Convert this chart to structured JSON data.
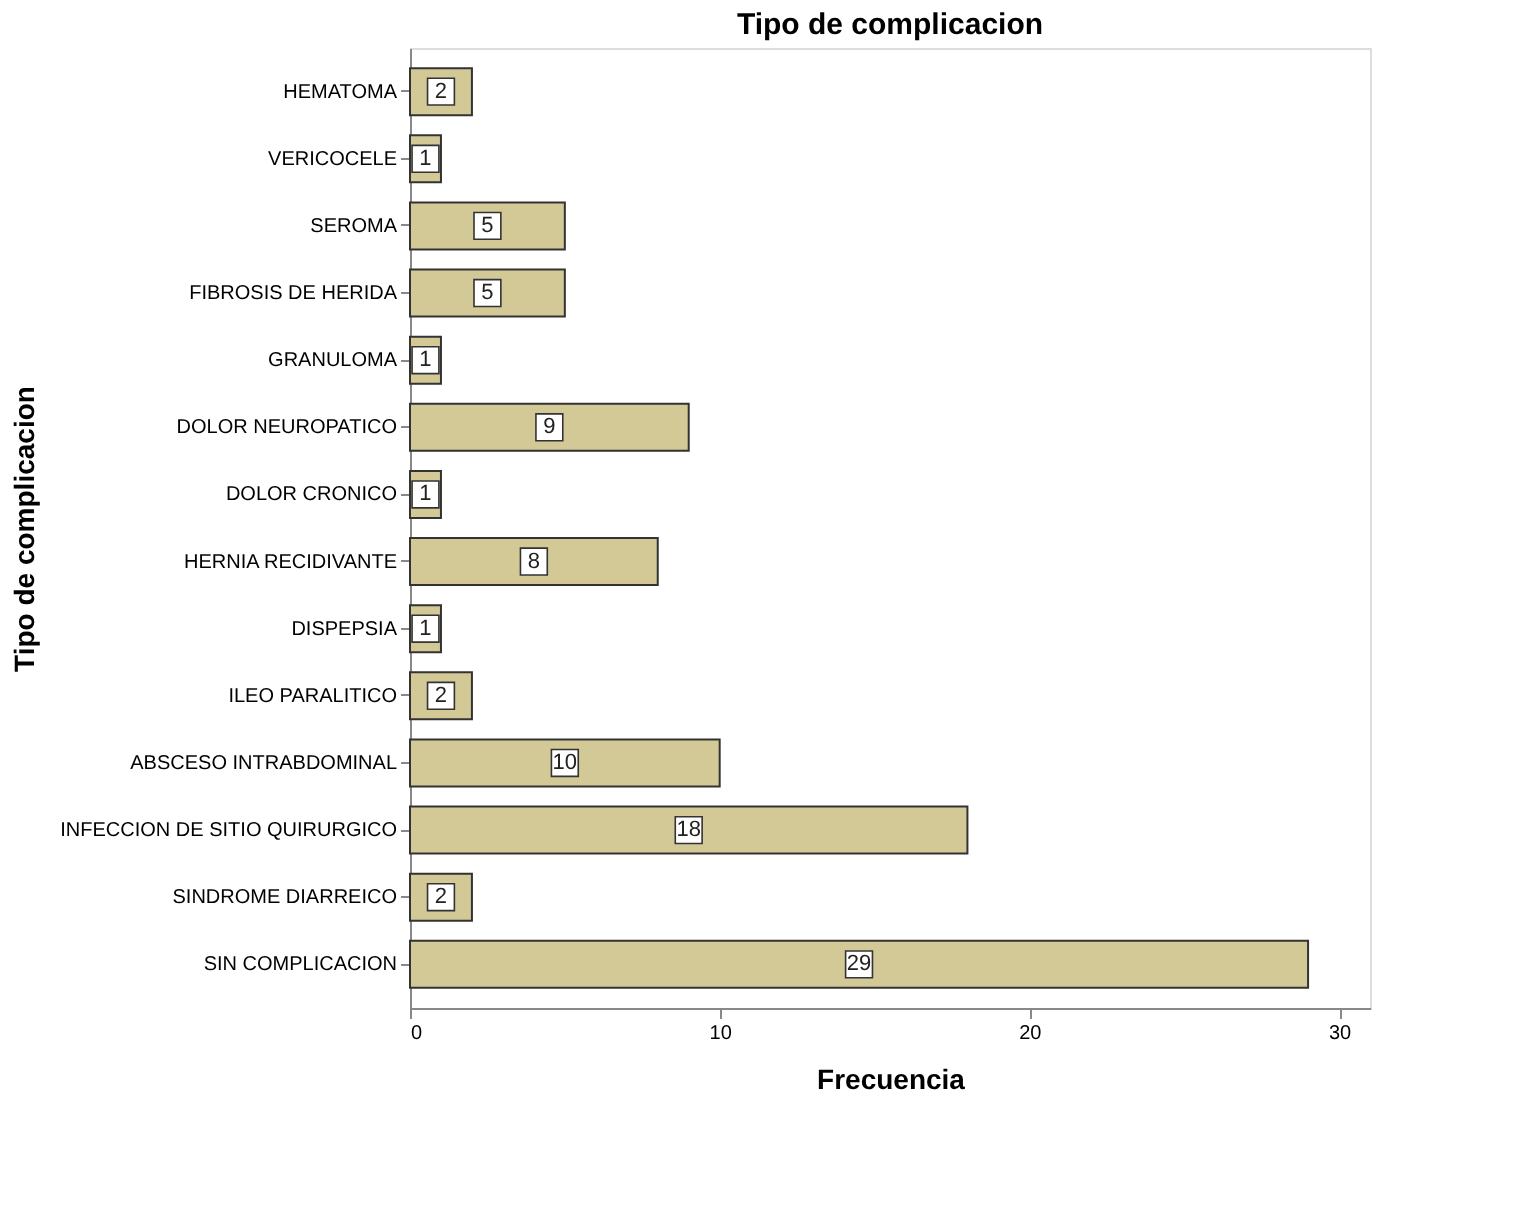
{
  "chart_data": {
    "type": "bar",
    "orientation": "horizontal",
    "title": "Tipo de complicacion",
    "xlabel": "Frecuencia",
    "ylabel": "Tipo de complicacion",
    "categories": [
      "HEMATOMA",
      "VERICOCELE",
      "SEROMA",
      "FIBROSIS DE HERIDA",
      "GRANULOMA",
      "DOLOR NEUROPATICO",
      "DOLOR CRONICO",
      "HERNIA RECIDIVANTE",
      "DISPEPSIA",
      "ILEO PARALITICO",
      "ABSCESO INTRABDOMINAL",
      "INFECCION DE SITIO QUIRURGICO",
      "SINDROME DIARREICO",
      "SIN COMPLICACION"
    ],
    "values": [
      2,
      1,
      5,
      5,
      1,
      9,
      1,
      8,
      1,
      2,
      10,
      18,
      2,
      29
    ],
    "color": "#d3c996",
    "xlim": [
      0,
      31
    ],
    "xticks": [
      0,
      10,
      20,
      30
    ],
    "grid": false,
    "data_labels": true
  }
}
